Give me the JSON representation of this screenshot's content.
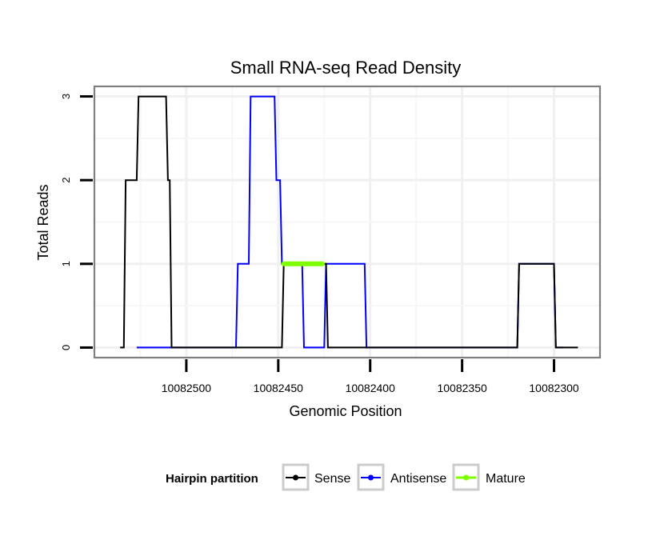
{
  "chart_data": {
    "type": "line",
    "title": "Small RNA-seq Read Density",
    "xlabel": "Genomic Position",
    "ylabel": "Total Reads",
    "x_reversed": true,
    "xlim": [
      10082550,
      10082275
    ],
    "ylim": [
      -0.12,
      3.12
    ],
    "x_ticks": [
      10082500,
      10082450,
      10082400,
      10082350,
      10082300
    ],
    "x_tick_labels": [
      "10082500",
      "10082450",
      "10082400",
      "10082350",
      "10082300"
    ],
    "y_ticks": [
      0,
      1,
      2,
      3
    ],
    "y_tick_labels": [
      "0",
      "1",
      "2",
      "3"
    ],
    "grid": true,
    "legend": {
      "title": "Hairpin partition",
      "position": "bottom",
      "entries": [
        "Sense",
        "Antisense",
        "Mature"
      ]
    },
    "series": [
      {
        "name": "Antisense",
        "color": "#0000ff",
        "points": [
          [
            10082527,
            0
          ],
          [
            10082501,
            0
          ],
          [
            10082473,
            0
          ],
          [
            10082472,
            1
          ],
          [
            10082466,
            1
          ],
          [
            10082465,
            3
          ],
          [
            10082452,
            3
          ],
          [
            10082451,
            2
          ],
          [
            10082449,
            2
          ],
          [
            10082448,
            1
          ],
          [
            10082437,
            1
          ],
          [
            10082436,
            0
          ],
          [
            10082425,
            0
          ],
          [
            10082424,
            1
          ],
          [
            10082403,
            1
          ],
          [
            10082402,
            0
          ],
          [
            10082320,
            0
          ],
          [
            10082319,
            1
          ],
          [
            10082300,
            1
          ],
          [
            10082299,
            0
          ],
          [
            10082295,
            0
          ]
        ]
      },
      {
        "name": "Sense",
        "color": "#000000",
        "points": [
          [
            10082536,
            0
          ],
          [
            10082534,
            0
          ],
          [
            10082533,
            2
          ],
          [
            10082527,
            2
          ],
          [
            10082526,
            3
          ],
          [
            10082511,
            3
          ],
          [
            10082510,
            2
          ],
          [
            10082509,
            2
          ],
          [
            10082508,
            0
          ],
          [
            10082448,
            0
          ],
          [
            10082447,
            1
          ],
          [
            10082424,
            1
          ],
          [
            10082423,
            0
          ],
          [
            10082320,
            0
          ],
          [
            10082319,
            1
          ],
          [
            10082300,
            1
          ],
          [
            10082299,
            0
          ],
          [
            10082287,
            0
          ]
        ]
      },
      {
        "name": "Mature",
        "color": "#7fff00",
        "points": [
          [
            10082447,
            1
          ],
          [
            10082426,
            1
          ]
        ]
      }
    ]
  }
}
